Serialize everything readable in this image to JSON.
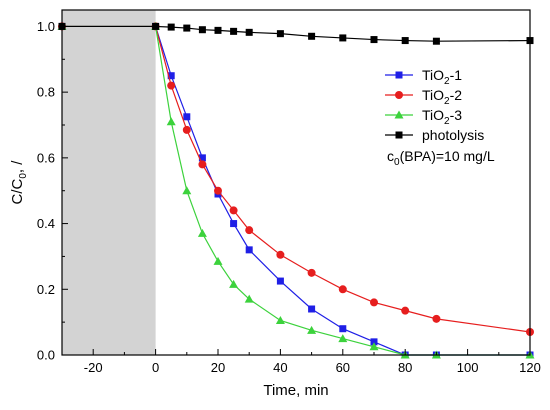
{
  "chart_data": {
    "type": "line",
    "xlabel": "Time, min",
    "ylabel_main": "C/C",
    "ylabel_sub": "0",
    "ylabel_tail": ", /",
    "xlim": [
      -30,
      120
    ],
    "ylim": [
      0,
      1.05
    ],
    "xticks": [
      -20,
      0,
      20,
      40,
      60,
      80,
      100,
      120
    ],
    "xtick_labels": [
      "-20",
      "0",
      "20",
      "40",
      "60",
      "80",
      "100",
      "120"
    ],
    "yticks": [
      0,
      0.2,
      0.4,
      0.6,
      0.8,
      1.0
    ],
    "ytick_labels": [
      "0.0",
      "0.2",
      "0.4",
      "0.6",
      "0.8",
      "1.0"
    ],
    "dark_region": {
      "x_from": -30,
      "x_to": 0,
      "color": "#d3d3d3"
    },
    "legend_position": "top-right",
    "annotation": {
      "prefix": "c",
      "sub": "0",
      "suffix": "(BPA)=10 mg/L"
    },
    "series": [
      {
        "name_main": "TiO",
        "name_sub": "2",
        "name_tail": "-1",
        "color": "#1f1fe6",
        "marker": "square",
        "x": [
          -30,
          0,
          5,
          10,
          15,
          20,
          25,
          30,
          40,
          50,
          60,
          70,
          80,
          90,
          120
        ],
        "y": [
          1.0,
          1.0,
          0.85,
          0.725,
          0.6,
          0.49,
          0.4,
          0.32,
          0.225,
          0.14,
          0.08,
          0.04,
          0.0,
          0.0,
          0.0
        ]
      },
      {
        "name_main": "TiO",
        "name_sub": "2",
        "name_tail": "-2",
        "color": "#e61e1e",
        "marker": "circle",
        "x": [
          -30,
          0,
          5,
          10,
          15,
          20,
          25,
          30,
          40,
          50,
          60,
          70,
          80,
          90,
          120
        ],
        "y": [
          1.0,
          1.0,
          0.82,
          0.685,
          0.58,
          0.5,
          0.44,
          0.38,
          0.305,
          0.25,
          0.2,
          0.16,
          0.135,
          0.11,
          0.07
        ]
      },
      {
        "name_main": "TiO",
        "name_sub": "2",
        "name_tail": "-3",
        "color": "#3cd23c",
        "marker": "triangle",
        "x": [
          -30,
          0,
          5,
          10,
          15,
          20,
          25,
          30,
          40,
          50,
          60,
          70,
          80,
          90,
          120
        ],
        "y": [
          1.0,
          1.0,
          0.71,
          0.5,
          0.37,
          0.285,
          0.215,
          0.17,
          0.105,
          0.075,
          0.05,
          0.025,
          0.0,
          0.0,
          0.0
        ]
      },
      {
        "name_main": "photolysis",
        "name_sub": "",
        "name_tail": "",
        "color": "#000000",
        "marker": "square",
        "x": [
          -30,
          0,
          5,
          10,
          15,
          20,
          25,
          30,
          40,
          50,
          60,
          70,
          80,
          90,
          120
        ],
        "y": [
          1.0,
          1.0,
          0.998,
          0.995,
          0.99,
          0.988,
          0.985,
          0.982,
          0.978,
          0.97,
          0.965,
          0.96,
          0.957,
          0.955,
          0.957
        ]
      }
    ]
  }
}
